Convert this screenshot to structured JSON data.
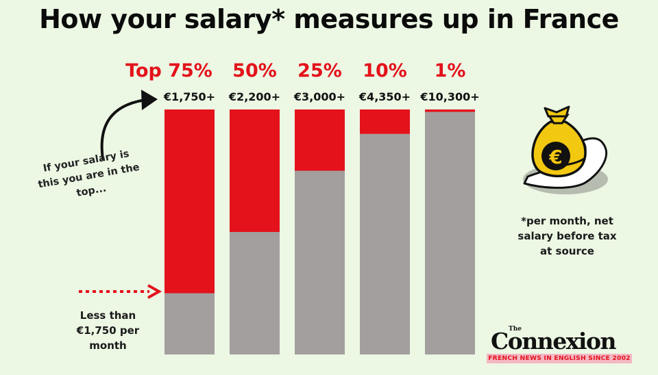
{
  "title": "How your salary* measures up in France",
  "chart_data": {
    "type": "bar",
    "categories": [
      "Top 75%",
      "50%",
      "25%",
      "10%",
      "1%"
    ],
    "thresholds": [
      "€1,750+",
      "€2,200+",
      "€3,000+",
      "€4,350+",
      "€10,300+"
    ],
    "series": [
      {
        "values": [
          75,
          50,
          25,
          10,
          1
        ],
        "color": "#e3121b"
      },
      {
        "values": [
          25,
          50,
          75,
          90,
          99
        ],
        "color": "#a29f9e"
      }
    ],
    "ylim": [
      0,
      100
    ]
  },
  "annotations": {
    "curve_note": "If your salary is this you are in the top...",
    "less_note": "Less than €1,750 per month",
    "footnote": "*per month, net salary before tax at source"
  },
  "logo": {
    "the": "The",
    "name": "Connexion",
    "tagline": "FRENCH NEWS IN ENGLISH SINCE 2002"
  },
  "colors": {
    "red": "#e3121b",
    "grey": "#a29f9e",
    "background": "#ecf7e4",
    "gold": "#f2c811"
  },
  "icons": [
    "money-bag-in-hand-icon"
  ]
}
